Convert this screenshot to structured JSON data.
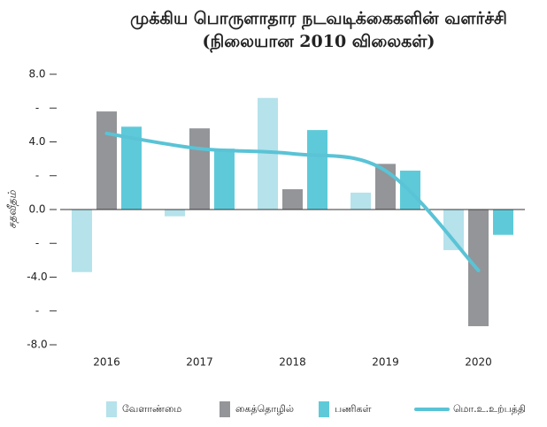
{
  "chart_data": {
    "type": "bar+line",
    "title": [
      "முக்கிய பொருளாதார நடவடிக்கைகளின் வளர்ச்சி",
      "(நிலையான 2010 விலைகள்)"
    ],
    "y_label": "சதவீதம்",
    "categories": [
      "2016",
      "2017",
      "2018",
      "2019",
      "2020"
    ],
    "series": [
      {
        "name": "வேளாண்மை",
        "color": "#b5e2eb",
        "type": "bar",
        "values": [
          -3.7,
          -0.4,
          6.6,
          1.0,
          -2.4
        ]
      },
      {
        "name": "கைத்தொழில்",
        "color": "#939598",
        "type": "bar",
        "values": [
          5.8,
          4.8,
          1.2,
          2.7,
          -6.9
        ]
      },
      {
        "name": "பணிகள்",
        "color": "#5ecad9",
        "type": "bar",
        "values": [
          4.9,
          3.6,
          4.7,
          2.3,
          -1.5
        ]
      },
      {
        "name": "மொ.உ.உற்பத்தி",
        "color": "#5ac3d6",
        "type": "line",
        "values": [
          4.5,
          3.6,
          3.3,
          2.3,
          -3.6
        ]
      }
    ],
    "ylim": [
      -8,
      8
    ],
    "yticks": [
      {
        "value": -8,
        "label": "-8.0"
      },
      {
        "value": -6,
        "label": "-"
      },
      {
        "value": -4,
        "label": "-4.0"
      },
      {
        "value": -2,
        "label": "-"
      },
      {
        "value": 0,
        "label": "0.0"
      },
      {
        "value": 2,
        "label": "-"
      },
      {
        "value": 4,
        "label": "4.0"
      },
      {
        "value": 6,
        "label": "-"
      },
      {
        "value": 8,
        "label": "8.0"
      }
    ],
    "legend": "bottom"
  }
}
